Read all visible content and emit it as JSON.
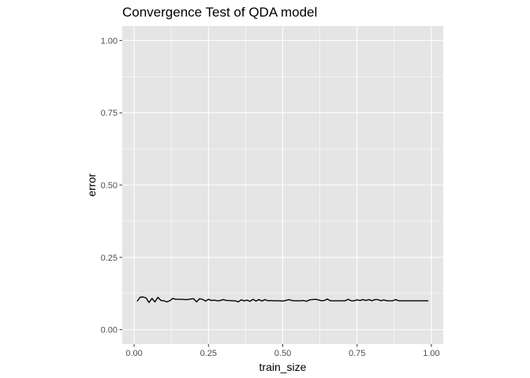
{
  "chart_data": {
    "type": "line",
    "title": "Convergence Test of QDA model",
    "xlabel": "train_size",
    "ylabel": "error",
    "xlim": [
      -0.04,
      1.04
    ],
    "ylim": [
      -0.05,
      1.05
    ],
    "x_ticks": [
      0.0,
      0.25,
      0.5,
      0.75,
      1.0
    ],
    "x_tick_labels": [
      "0.00",
      "0.25",
      "0.50",
      "0.75",
      "1.00"
    ],
    "y_ticks": [
      0.0,
      0.25,
      0.5,
      0.75,
      1.0
    ],
    "y_tick_labels": [
      "0.00",
      "0.25",
      "0.50",
      "0.75",
      "1.00"
    ],
    "grid": true,
    "panel_background": "#e5e5e5",
    "grid_color": "#ffffff",
    "line_color": "#000000",
    "series": [
      {
        "x": [
          0.01,
          0.02,
          0.03,
          0.04,
          0.05,
          0.06,
          0.07,
          0.08,
          0.09,
          0.1,
          0.11,
          0.12,
          0.13,
          0.14,
          0.15,
          0.16,
          0.17,
          0.18,
          0.19,
          0.2,
          0.21,
          0.22,
          0.23,
          0.24,
          0.25,
          0.26,
          0.27,
          0.28,
          0.29,
          0.3,
          0.31,
          0.32,
          0.33,
          0.34,
          0.35,
          0.36,
          0.37,
          0.38,
          0.39,
          0.4,
          0.41,
          0.42,
          0.43,
          0.44,
          0.45,
          0.46,
          0.47,
          0.48,
          0.49,
          0.5,
          0.51,
          0.52,
          0.53,
          0.54,
          0.55,
          0.56,
          0.57,
          0.58,
          0.59,
          0.6,
          0.61,
          0.62,
          0.63,
          0.64,
          0.65,
          0.66,
          0.67,
          0.68,
          0.69,
          0.7,
          0.71,
          0.72,
          0.73,
          0.74,
          0.75,
          0.76,
          0.77,
          0.78,
          0.79,
          0.8,
          0.81,
          0.82,
          0.83,
          0.84,
          0.85,
          0.86,
          0.87,
          0.88,
          0.89,
          0.9,
          0.91,
          0.92,
          0.93,
          0.94,
          0.95,
          0.96,
          0.97,
          0.98,
          0.99
        ],
        "values": [
          0.098,
          0.112,
          0.113,
          0.11,
          0.094,
          0.108,
          0.096,
          0.112,
          0.101,
          0.1,
          0.096,
          0.1,
          0.108,
          0.105,
          0.105,
          0.105,
          0.104,
          0.104,
          0.106,
          0.107,
          0.096,
          0.107,
          0.105,
          0.099,
          0.105,
          0.101,
          0.102,
          0.1,
          0.101,
          0.104,
          0.101,
          0.101,
          0.1,
          0.1,
          0.096,
          0.103,
          0.1,
          0.102,
          0.098,
          0.105,
          0.099,
          0.104,
          0.099,
          0.104,
          0.1,
          0.101,
          0.1,
          0.1,
          0.1,
          0.099,
          0.101,
          0.104,
          0.101,
          0.1,
          0.1,
          0.1,
          0.101,
          0.098,
          0.103,
          0.104,
          0.105,
          0.103,
          0.1,
          0.101,
          0.106,
          0.1,
          0.1,
          0.1,
          0.1,
          0.1,
          0.1,
          0.105,
          0.1,
          0.1,
          0.103,
          0.101,
          0.104,
          0.101,
          0.104,
          0.1,
          0.104,
          0.104,
          0.1,
          0.103,
          0.1,
          0.1,
          0.1,
          0.104,
          0.1,
          0.1,
          0.1,
          0.1,
          0.1,
          0.1,
          0.1,
          0.1,
          0.1,
          0.1,
          0.1
        ]
      }
    ]
  }
}
